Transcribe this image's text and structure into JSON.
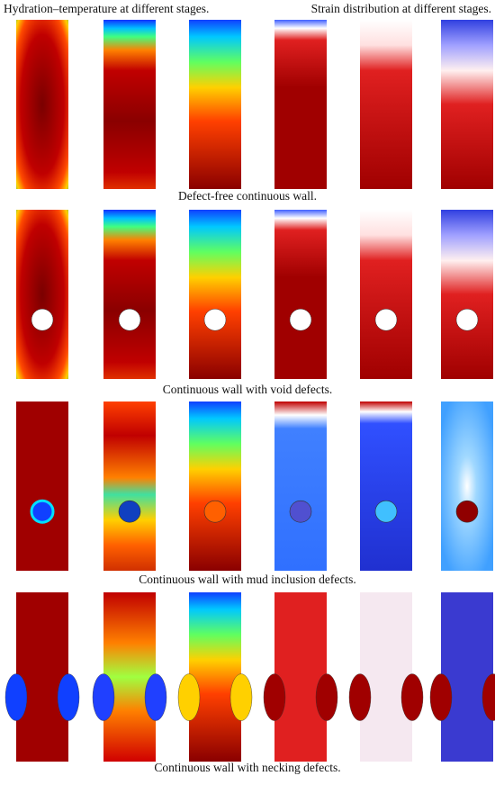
{
  "headers": {
    "left": "Hydration–temperature at different stages.",
    "right": "Strain distribution at different stages."
  },
  "rows": [
    {
      "caption": "Defect-free continuous wall."
    },
    {
      "caption": "Continuous wall with void defects."
    },
    {
      "caption": "Continuous wall with mud inclusion defects."
    },
    {
      "caption": "Continuous wall with necking defects."
    }
  ]
}
